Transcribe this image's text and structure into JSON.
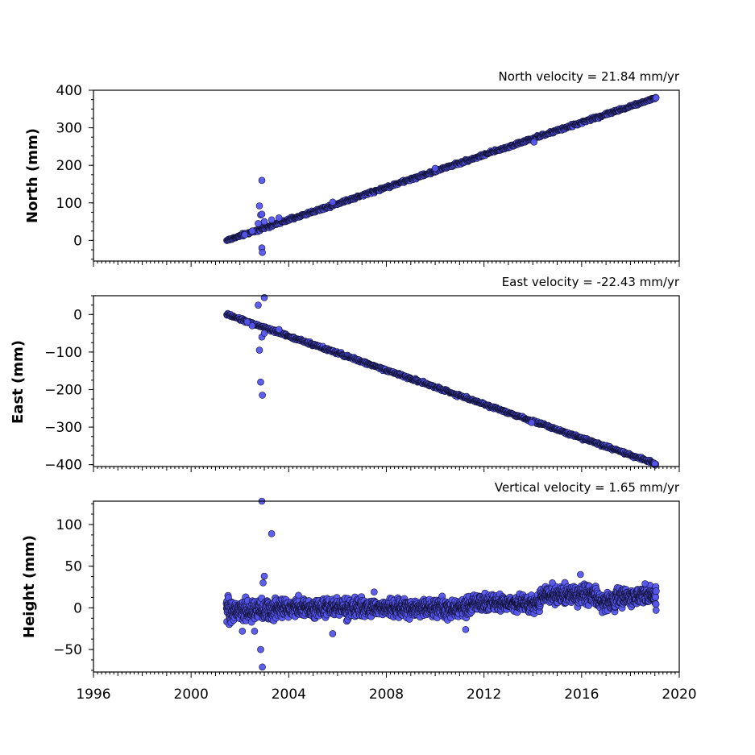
{
  "chart_data": [
    {
      "type": "scatter",
      "title": "North velocity = 21.84 mm/yr",
      "xlabel": "",
      "ylabel": "North (mm)",
      "xlim": [
        1996,
        2020
      ],
      "ylim": [
        -55,
        400
      ],
      "yticks": [
        "400",
        "300",
        "200",
        "100",
        "0"
      ],
      "xticks": [],
      "marker_color": "#5555ee",
      "marker_edge_color": "#111133",
      "series": [
        {
          "trend": {
            "x0": 2001.45,
            "y0": 0,
            "x1": 2019.05,
            "y1": 380,
            "scatter": 2
          },
          "points": [
            [
              2002.9,
              160
            ],
            [
              2002.8,
              92
            ],
            [
              2002.85,
              68
            ],
            [
              2002.9,
              70
            ],
            [
              2003.0,
              50
            ],
            [
              2002.9,
              -20
            ],
            [
              2002.92,
              -32
            ],
            [
              2002.75,
              45
            ],
            [
              2003.3,
              55
            ],
            [
              2003.6,
              60
            ],
            [
              2002.2,
              15
            ],
            [
              2002.5,
              25
            ],
            [
              2005.8,
              102
            ],
            [
              2010.0,
              192
            ],
            [
              2014.05,
              262
            ],
            [
              2019.05,
              380
            ]
          ]
        }
      ]
    },
    {
      "type": "scatter",
      "title": "East velocity = -22.43 mm/yr",
      "xlabel": "",
      "ylabel": "East (mm)",
      "xlim": [
        1996,
        2020
      ],
      "ylim": [
        -405,
        50
      ],
      "yticks": [
        "0",
        "−100",
        "−200",
        "−300",
        "−400"
      ],
      "xticks": [],
      "marker_color": "#5555ee",
      "marker_edge_color": "#111133",
      "series": [
        {
          "trend": {
            "x0": 2001.45,
            "y0": 0,
            "x1": 2019.05,
            "y1": -398,
            "scatter": 2
          },
          "points": [
            [
              2002.75,
              25
            ],
            [
              2003.0,
              45
            ],
            [
              2002.8,
              -95
            ],
            [
              2002.85,
              -180
            ],
            [
              2002.92,
              -215
            ],
            [
              2002.9,
              -60
            ],
            [
              2003.0,
              -50
            ],
            [
              2003.6,
              -40
            ],
            [
              2002.5,
              -30
            ],
            [
              2002.3,
              -20
            ],
            [
              2013.95,
              -288
            ],
            [
              2019.0,
              -398
            ]
          ]
        }
      ]
    },
    {
      "type": "scatter",
      "title": "Vertical velocity = 1.65 mm/yr",
      "xlabel": "",
      "ylabel": "Height (mm)",
      "xlim": [
        1996,
        2020
      ],
      "ylim": [
        -77,
        128
      ],
      "yticks": [
        "100",
        "50",
        "0",
        "−50"
      ],
      "xticks": [
        "1996",
        "2000",
        "2004",
        "2008",
        "2012",
        "2016",
        "2020"
      ],
      "marker_color": "#5555ee",
      "marker_edge_color": "#111133",
      "series": [
        {
          "noise": [
            {
              "x0": 2001.45,
              "x1": 2003.5,
              "center": -3,
              "spread": 12
            },
            {
              "x0": 2003.5,
              "x1": 2011.5,
              "center": 0,
              "spread": 9
            },
            {
              "x0": 2011.5,
              "x1": 2014.3,
              "center": 5,
              "spread": 8
            },
            {
              "x0": 2014.3,
              "x1": 2016.6,
              "center": 15,
              "spread": 10
            },
            {
              "x0": 2016.6,
              "x1": 2017.4,
              "center": 8,
              "spread": 9
            },
            {
              "x0": 2017.4,
              "x1": 2019.05,
              "center": 14,
              "spread": 9
            }
          ],
          "points": [
            [
              2002.9,
              128
            ],
            [
              2003.3,
              89
            ],
            [
              2003.0,
              38
            ],
            [
              2002.95,
              30
            ],
            [
              2002.85,
              -50
            ],
            [
              2002.92,
              -71
            ],
            [
              2002.6,
              -28
            ],
            [
              2002.1,
              -28
            ],
            [
              2005.8,
              -31
            ],
            [
              2011.25,
              -26
            ],
            [
              2015.95,
              40
            ],
            [
              2014.8,
              30
            ],
            [
              2018.6,
              29
            ],
            [
              2004.4,
              15
            ],
            [
              2007.5,
              19
            ],
            [
              2019.05,
              -3
            ]
          ]
        }
      ]
    }
  ]
}
